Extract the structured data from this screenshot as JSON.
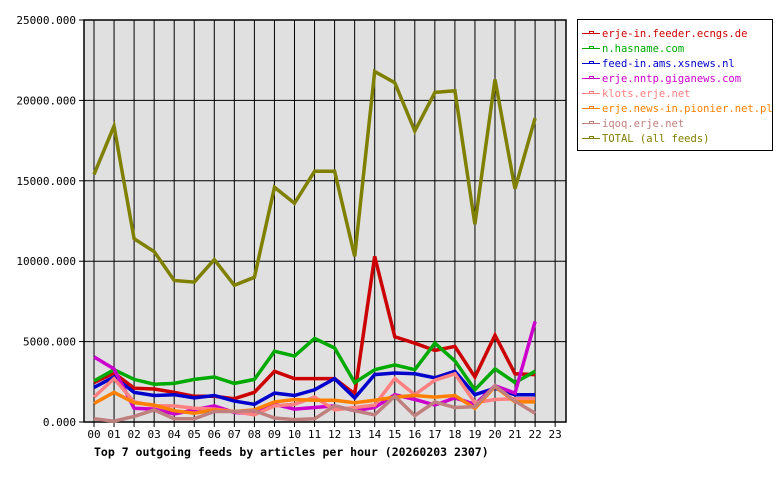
{
  "chart_data": {
    "type": "line",
    "title": "Top 7 outgoing feeds by articles per hour (20260203 2307)",
    "xlabel": "",
    "ylabel": "",
    "ylim": [
      0,
      25000
    ],
    "yticks": [
      "0.000",
      "5000.000",
      "10000.000",
      "15000.000",
      "20000.000",
      "25000.000"
    ],
    "x": [
      "00",
      "01",
      "02",
      "03",
      "04",
      "05",
      "06",
      "07",
      "08",
      "09",
      "10",
      "11",
      "12",
      "13",
      "14",
      "15",
      "16",
      "17",
      "18",
      "19",
      "20",
      "21",
      "22",
      "23"
    ],
    "grid": true,
    "legend_position": "right",
    "series": [
      {
        "name": "erje-in.feeder.ecngs.de",
        "color": "#cc0000",
        "values": [
          2450,
          3050,
          2100,
          2050,
          1850,
          1600,
          1600,
          1450,
          1850,
          3150,
          2700,
          2700,
          2700,
          1750,
          10300,
          5300,
          4900,
          4450,
          4700,
          2800,
          5400,
          3000,
          2950
        ]
      },
      {
        "name": "n.hasname.com",
        "color": "#00aa00",
        "values": [
          2550,
          3250,
          2650,
          2350,
          2400,
          2650,
          2800,
          2400,
          2650,
          4400,
          4100,
          5200,
          4600,
          2450,
          3250,
          3550,
          3250,
          4900,
          3800,
          2000,
          3300,
          2450,
          3150
        ]
      },
      {
        "name": "feed-in.ams.xsnews.nl",
        "color": "#0000cc",
        "values": [
          2150,
          2800,
          1850,
          1650,
          1700,
          1500,
          1650,
          1300,
          1100,
          1800,
          1650,
          2000,
          2700,
          1500,
          2950,
          3050,
          3000,
          2750,
          3150,
          1700,
          2100,
          1700,
          1700
        ]
      },
      {
        "name": "erje.nntp.giganews.com",
        "color": "#cc00cc",
        "values": [
          4050,
          3300,
          850,
          800,
          500,
          750,
          1000,
          600,
          500,
          1100,
          800,
          900,
          1000,
          700,
          900,
          1700,
          1400,
          1050,
          1500,
          1100,
          2250,
          1800,
          6250
        ]
      },
      {
        "name": "klots.erje.net",
        "color": "#ff8080",
        "values": [
          1550,
          2700,
          1250,
          1000,
          1000,
          850,
          800,
          650,
          450,
          1000,
          1100,
          1550,
          750,
          900,
          1050,
          2700,
          1700,
          2600,
          3000,
          1200,
          1400,
          1450,
          1450
        ]
      },
      {
        "name": "erje.news-in.pionier.net.pl",
        "color": "#ff8000",
        "values": [
          1150,
          1850,
          1200,
          1050,
          700,
          550,
          750,
          650,
          750,
          1250,
          1400,
          1350,
          1350,
          1200,
          1350,
          1550,
          1650,
          1550,
          1650,
          850,
          2200,
          1250,
          1250
        ]
      },
      {
        "name": "iqoq.erje.net",
        "color": "#c08080",
        "values": [
          200,
          50,
          350,
          750,
          200,
          200,
          650,
          650,
          700,
          250,
          150,
          200,
          1000,
          700,
          450,
          1600,
          400,
          1250,
          900,
          950,
          2250,
          1300,
          550
        ]
      },
      {
        "name": "TOTAL (all feeds)",
        "color": "#808000",
        "values": [
          15400,
          18400,
          11400,
          10600,
          8800,
          8700,
          10100,
          8500,
          9000,
          14600,
          13600,
          15600,
          15600,
          10300,
          21800,
          21100,
          18100,
          20500,
          20600,
          12300,
          21300,
          14500,
          18900
        ]
      }
    ]
  }
}
